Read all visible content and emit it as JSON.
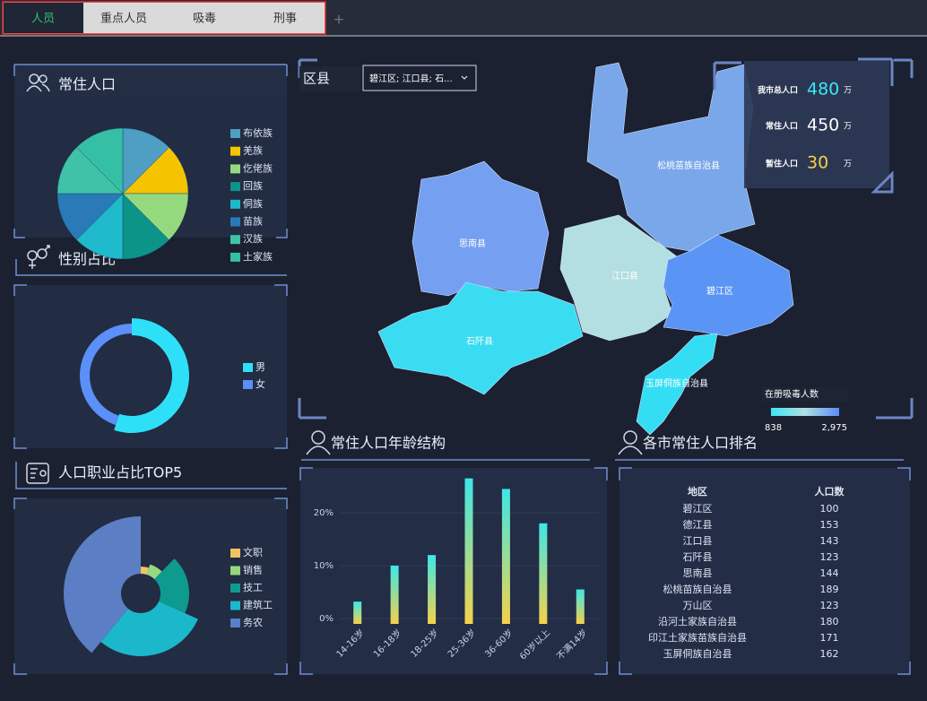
{
  "tabs": {
    "items": [
      "人员",
      "重点人员",
      "吸毒",
      "刑事"
    ],
    "add": "+"
  },
  "map": {
    "title": "区县",
    "selector": "碧江区; 江口县; 石...",
    "regions": [
      {
        "name": "松桃苗族自治县",
        "color": "#7aa6ea"
      },
      {
        "name": "思南县",
        "color": "#759ff0"
      },
      {
        "name": "江口县",
        "color": "#b3dfe2"
      },
      {
        "name": "碧江区",
        "color": "#5a94f5"
      },
      {
        "name": "石阡县",
        "color": "#3adcf2"
      },
      {
        "name": "玉屏侗族自治县",
        "color": "#33def4"
      }
    ],
    "legend": {
      "title": "在册吸毒人数",
      "min": 838,
      "max": {
        "value": 2975,
        "label": "2,975"
      }
    }
  },
  "stats": [
    {
      "label": "我市总人口",
      "value": 480,
      "unit": "万",
      "color": "#3ee6f5"
    },
    {
      "label": "常住人口",
      "value": 450,
      "unit": "万",
      "color": "#ffffff"
    },
    {
      "label": "暂住人口",
      "value": 30,
      "unit": "万",
      "color": "#f7cf4a"
    }
  ],
  "chart_data": [
    {
      "type": "pie",
      "title": "常住人口",
      "categories": [
        "布依族",
        "羌族",
        "仡佬族",
        "回族",
        "侗族",
        "苗族",
        "汉族",
        "土家族"
      ],
      "values": [
        12.5,
        12.5,
        12.5,
        12.5,
        12.5,
        12.5,
        12.5,
        12.5
      ],
      "colors": [
        "#4f9ec4",
        "#f5c400",
        "#95d97e",
        "#0d9488",
        "#1fb9cc",
        "#2a7ab8",
        "#3fc2a8",
        "#35bfa5"
      ]
    },
    {
      "type": "donut",
      "title": "性别占比",
      "categories": [
        "男",
        "女"
      ],
      "values": [
        55,
        45
      ],
      "colors": [
        "#2ee0f7",
        "#5b8ff9"
      ]
    },
    {
      "type": "rose",
      "title": "人口职业占比TOP5",
      "categories": [
        "文职",
        "销售",
        "技工",
        "建筑工",
        "务农"
      ],
      "values": [
        10,
        15,
        40,
        60,
        80
      ],
      "colors": [
        "#f0c463",
        "#95d97e",
        "#0e9a8e",
        "#1bb8cc",
        "#5b7ec4"
      ]
    },
    {
      "type": "bar",
      "title": "常住人口年龄结构",
      "categories": [
        "14-16岁",
        "16-18岁",
        "18-25岁",
        "25-36岁",
        "36-60岁",
        "60岁以上",
        "不满14岁"
      ],
      "values": [
        3.2,
        10,
        12,
        26.5,
        24.5,
        18,
        5.5
      ],
      "ylim": [
        0,
        30
      ],
      "yticks": [
        {
          "value": 0,
          "label": "0%"
        },
        {
          "value": 10,
          "label": "10%"
        },
        {
          "value": 20,
          "label": "20%"
        }
      ],
      "grid": true,
      "color_top": "#3ee6e6",
      "color_bottom": "#f5d24a"
    }
  ],
  "table": {
    "title": "各市常住人口排名",
    "columns": [
      "地区",
      "人口数"
    ],
    "rows": [
      [
        "碧江区",
        100
      ],
      [
        "德江县",
        153
      ],
      [
        "江口县",
        143
      ],
      [
        "石阡县",
        123
      ],
      [
        "思南县",
        144
      ],
      [
        "松桃苗族自治县",
        189
      ],
      [
        "万山区",
        123
      ],
      [
        "沿河土家族自治县",
        180
      ],
      [
        "印江土家族苗族自治县",
        171
      ],
      [
        "玉屏侗族自治县",
        162
      ]
    ]
  }
}
